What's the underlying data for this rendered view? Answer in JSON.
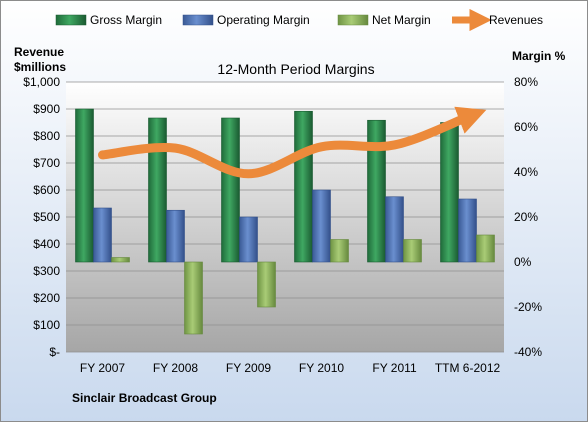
{
  "colors": {
    "gross": "#2f8a4f",
    "operating": "#4f73b3",
    "net": "#8db35a",
    "revenues": "#ec8a3b",
    "frame_bg_top": "#ffffff",
    "frame_bg_bottom": "#c9d9ee",
    "plot_bg_top": "#ffffff",
    "plot_bg_bottom": "#a6a6a6"
  },
  "chart_data": {
    "type": "bar",
    "title": "12-Month Period Margins",
    "footer": "Sinclair Broadcast Group",
    "y_left_label": [
      "Revenue",
      "$millions"
    ],
    "y_right_label": "Margin %",
    "categories": [
      "FY 2007",
      "FY 2008",
      "FY 2009",
      "FY 2010",
      "FY 2011",
      "TTM 6-2012"
    ],
    "legend": [
      "Gross Margin",
      "Operating Margin",
      "Net Margin",
      "Revenues"
    ],
    "legend_position": "top",
    "y_left_ticks": [
      "$-",
      "$100",
      "$200",
      "$300",
      "$400",
      "$500",
      "$600",
      "$700",
      "$800",
      "$900",
      "$1,000"
    ],
    "y_right_ticks": [
      "-40%",
      "-20%",
      "0%",
      "20%",
      "40%",
      "60%",
      "80%"
    ],
    "ylim_left": [
      0,
      1000
    ],
    "ylim_right": [
      -40,
      80
    ],
    "grid": true,
    "series": [
      {
        "name": "Gross Margin",
        "type": "bar",
        "axis": "right",
        "values": [
          68,
          64,
          64,
          67,
          63,
          62
        ]
      },
      {
        "name": "Operating Margin",
        "type": "bar",
        "axis": "right",
        "values": [
          24,
          23,
          20,
          32,
          29,
          28
        ]
      },
      {
        "name": "Net Margin",
        "type": "bar",
        "axis": "right",
        "values": [
          2,
          -32,
          -20,
          10,
          10,
          12
        ]
      },
      {
        "name": "Revenues",
        "type": "line",
        "axis": "left",
        "values": [
          730,
          755,
          660,
          760,
          767,
          870
        ]
      }
    ]
  }
}
